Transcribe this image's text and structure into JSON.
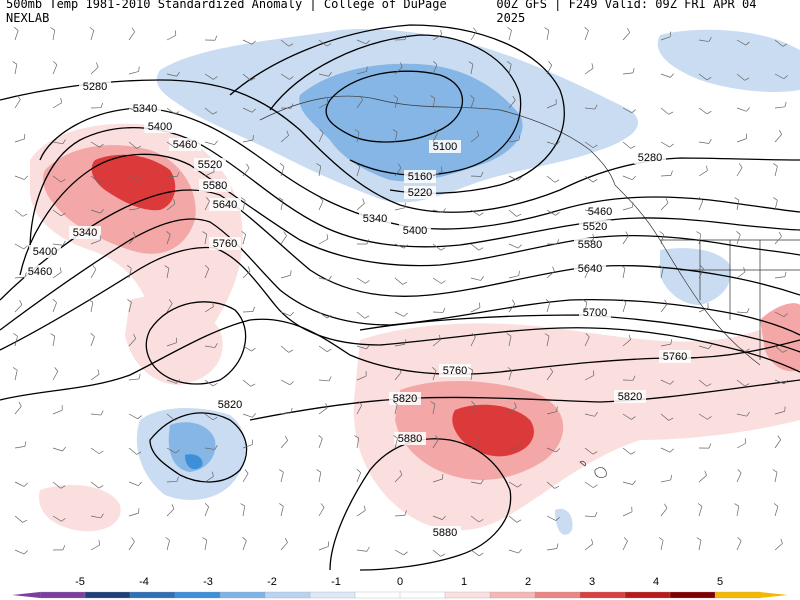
{
  "header": {
    "left_title": "500mb Temp 1981-2010 Standardized Anomaly | College of DuPage NEXLAB",
    "right_title": "00Z GFS | F249 Valid: 09Z FRI APR 04 2025"
  },
  "contours": {
    "labels": [
      "5100",
      "5160",
      "5220",
      "5280",
      "5280",
      "5340",
      "5340",
      "5340",
      "5400",
      "5400",
      "5400",
      "5460",
      "5460",
      "5460",
      "5520",
      "5520",
      "5580",
      "5580",
      "5640",
      "5640",
      "5700",
      "5760",
      "5760",
      "5760",
      "5820",
      "5820",
      "5820",
      "5880",
      "5880"
    ],
    "color": "#000000"
  },
  "legend": {
    "ticks": [
      "-5",
      "-4",
      "-3",
      "-2",
      "-1",
      "0",
      "1",
      "2",
      "3",
      "4",
      "5"
    ],
    "colors": [
      "#7b3fa0",
      "#1f3f7a",
      "#2f6fb6",
      "#3d8fd8",
      "#7fb3e8",
      "#b8d4f0",
      "#dde9f7",
      "#ffffff",
      "#ffffff",
      "#fbe0e0",
      "#f5b6b6",
      "#ea8585",
      "#d94040",
      "#b81a1a",
      "#800000",
      "#f5b800"
    ]
  },
  "anomaly_colors": {
    "warm_light": "#fbdede",
    "warm_mid": "#f3a7a7",
    "warm_strong": "#dc3a3a",
    "warm_max": "#b51a1a",
    "cold_light": "#c9dcf2",
    "cold_mid": "#86b6e6",
    "cold_strong": "#3d8fd8"
  }
}
